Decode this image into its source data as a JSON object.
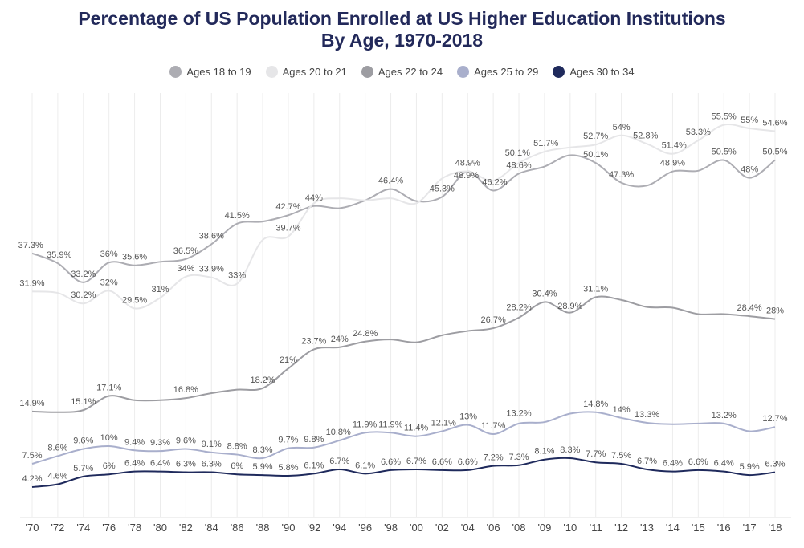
{
  "chart_data": {
    "type": "line",
    "title": "Percentage of US Population Enrolled at US Higher Education Institutions",
    "subtitle": "By Age, 1970-2018",
    "legend_position": "top",
    "grid": "vertical",
    "ylim": [
      0,
      60
    ],
    "categories": [
      "'70",
      "'72",
      "'74",
      "'76",
      "'78",
      "'80",
      "'82",
      "'84",
      "'86",
      "'88",
      "'90",
      "'92",
      "'94",
      "'96",
      "'98",
      "'00",
      "'02",
      "'04",
      "'06",
      "'08",
      "'09",
      "'10",
      "'11",
      "'12",
      "'13",
      "'14",
      "'15",
      "'16",
      "'17",
      "'18"
    ],
    "series": [
      {
        "name": "Ages 18 to 19",
        "color": "#adadb3",
        "values": [
          37.3,
          35.9,
          33.2,
          36,
          35.6,
          36.1,
          36.5,
          38.6,
          41.5,
          41.8,
          42.7,
          44,
          43.7,
          44.8,
          46.4,
          44.7,
          45.3,
          48.9,
          46.2,
          48.6,
          49.6,
          51.2,
          50.1,
          47.3,
          46.9,
          48.9,
          49.0,
          50.5,
          48,
          50.5
        ],
        "labeled": [
          0,
          1,
          2,
          3,
          4,
          6,
          7,
          8,
          10,
          11,
          14,
          16,
          17,
          18,
          19,
          22,
          23,
          25,
          27,
          28,
          29
        ]
      },
      {
        "name": "Ages 20 to 21",
        "color": "#e6e6e8",
        "values": [
          31.9,
          31.7,
          30.2,
          32,
          29.5,
          31,
          34,
          33.9,
          33,
          39.2,
          39.7,
          44.4,
          45.1,
          44.8,
          45.1,
          44.4,
          47.9,
          48.9,
          47.6,
          50.1,
          51.7,
          52.3,
          52.7,
          54,
          52.8,
          51.4,
          53.3,
          55.5,
          55,
          54.6
        ],
        "labeled": [
          0,
          2,
          3,
          4,
          5,
          6,
          7,
          8,
          10,
          17,
          19,
          20,
          22,
          23,
          24,
          25,
          26,
          27,
          28,
          29
        ]
      },
      {
        "name": "Ages 22 to 24",
        "color": "#9d9da2",
        "values": [
          14.9,
          14.8,
          15.1,
          17.1,
          16.5,
          16.5,
          16.8,
          17.5,
          18.0,
          18.2,
          21,
          23.7,
          24,
          24.8,
          25.1,
          24.7,
          25.7,
          26.3,
          26.7,
          28.2,
          30.4,
          28.9,
          31.1,
          30.7,
          29.7,
          29.6,
          28.7,
          28.7,
          28.4,
          28
        ],
        "labeled": [
          0,
          2,
          3,
          6,
          9,
          10,
          11,
          12,
          13,
          18,
          19,
          20,
          21,
          22,
          28,
          29
        ]
      },
      {
        "name": "Ages 25 to 29",
        "color": "#a9afcc",
        "values": [
          7.5,
          8.6,
          9.6,
          10,
          9.4,
          9.3,
          9.6,
          9.1,
          8.8,
          8.3,
          9.7,
          9.8,
          10.8,
          11.9,
          11.9,
          11.4,
          12.1,
          13,
          11.7,
          13.2,
          13.4,
          14.6,
          14.8,
          14,
          13.3,
          13.1,
          13.2,
          13.2,
          12.1,
          12.7
        ],
        "labeled": [
          0,
          1,
          2,
          3,
          4,
          5,
          6,
          7,
          8,
          9,
          10,
          11,
          12,
          13,
          14,
          15,
          16,
          17,
          18,
          19,
          22,
          23,
          24,
          27,
          29
        ]
      },
      {
        "name": "Ages 30 to 34",
        "color": "#1f2a5c",
        "values": [
          4.2,
          4.6,
          5.7,
          6,
          6.4,
          6.4,
          6.3,
          6.3,
          6,
          5.9,
          5.8,
          6.1,
          6.7,
          6.1,
          6.6,
          6.7,
          6.6,
          6.6,
          7.2,
          7.3,
          8.1,
          8.3,
          7.7,
          7.5,
          6.7,
          6.4,
          6.6,
          6.4,
          5.9,
          6.3
        ],
        "labeled": [
          0,
          1,
          2,
          3,
          4,
          5,
          6,
          7,
          8,
          9,
          10,
          11,
          12,
          13,
          14,
          15,
          16,
          17,
          18,
          19,
          20,
          21,
          22,
          23,
          24,
          25,
          26,
          27,
          28,
          29
        ]
      }
    ]
  }
}
